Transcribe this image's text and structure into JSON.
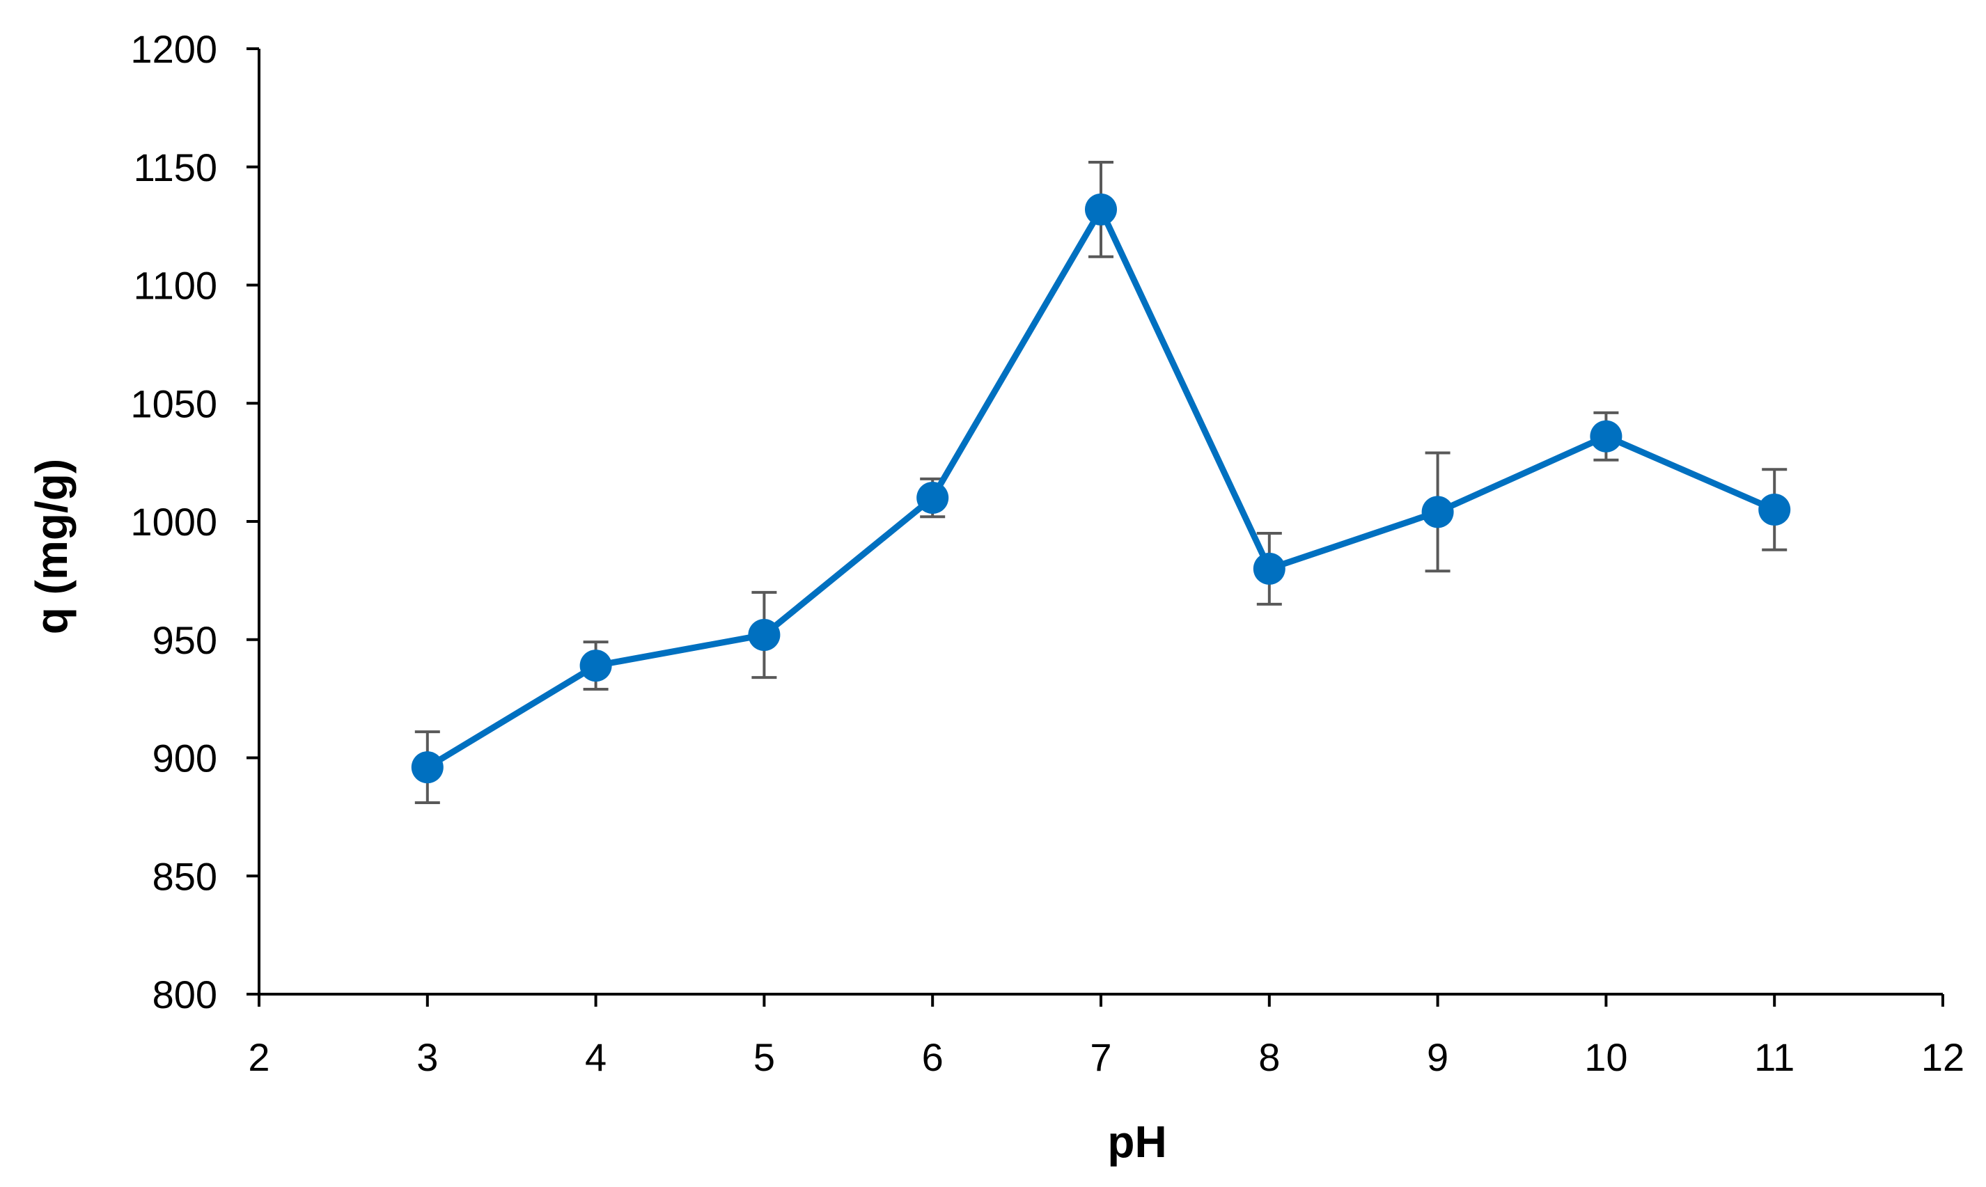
{
  "chart_data": {
    "type": "line",
    "title": "",
    "xlabel": "pH",
    "ylabel": "q (mg/g)",
    "xlim": [
      2,
      12
    ],
    "ylim": [
      800,
      1200
    ],
    "x_ticks": [
      2,
      3,
      4,
      5,
      6,
      7,
      8,
      9,
      10,
      11,
      12
    ],
    "y_ticks": [
      800,
      850,
      900,
      950,
      1000,
      1050,
      1100,
      1150,
      1200
    ],
    "grid": false,
    "legend": "none",
    "series": [
      {
        "x": [
          3,
          4,
          5,
          6,
          7,
          8,
          9,
          10,
          11
        ],
        "y": [
          896,
          939,
          952,
          1010,
          1132,
          980,
          1004,
          1036,
          1005
        ],
        "error": [
          15,
          10,
          18,
          8,
          20,
          15,
          25,
          10,
          17
        ],
        "color": "#0070C0",
        "marker": "circle"
      }
    ],
    "error_bar_color": "#595959",
    "axis_color": "#000000"
  }
}
